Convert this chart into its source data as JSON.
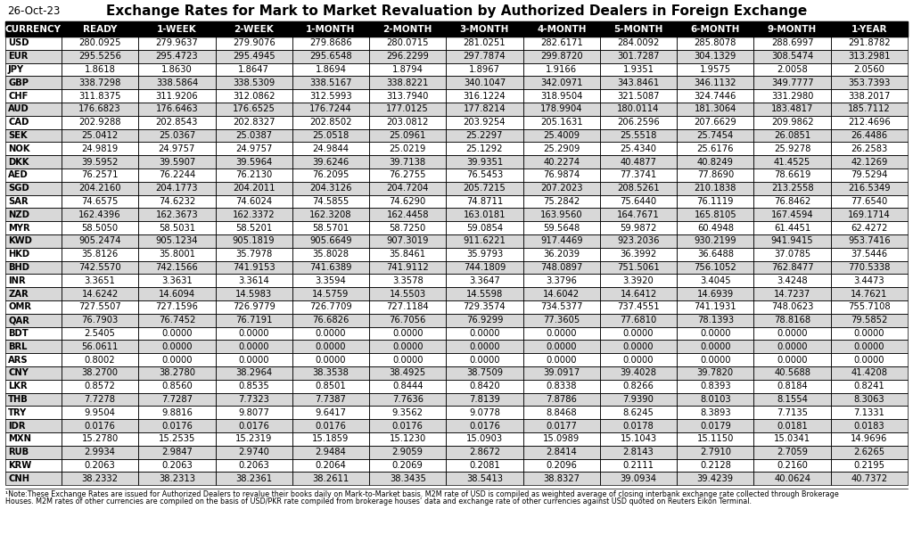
{
  "title": "Exchange Rates for Mark to Market Revaluation by Authorized Dealers in Foreign Exchange",
  "date": "26-Oct-23",
  "columns": [
    "CURRENCY",
    "READY",
    "1-WEEK",
    "2-WEEK",
    "1-MONTH",
    "2-MONTH",
    "3-MONTH",
    "4-MONTH",
    "5-MONTH",
    "6-MONTH",
    "9-MONTH",
    "1-YEAR"
  ],
  "rows": [
    [
      "USD",
      "280.0925",
      "279.9637",
      "279.9076",
      "279.8686",
      "280.0715",
      "281.0251",
      "282.6171",
      "284.0092",
      "285.8078",
      "288.6997",
      "291.8782"
    ],
    [
      "EUR",
      "295.5256",
      "295.4723",
      "295.4945",
      "295.6548",
      "296.2299",
      "297.7874",
      "299.8720",
      "301.7287",
      "304.1329",
      "308.5474",
      "313.2981"
    ],
    [
      "JPY",
      "1.8618",
      "1.8630",
      "1.8647",
      "1.8694",
      "1.8794",
      "1.8967",
      "1.9166",
      "1.9351",
      "1.9575",
      "2.0058",
      "2.0560"
    ],
    [
      "GBP",
      "338.7298",
      "338.5864",
      "338.5309",
      "338.5167",
      "338.8221",
      "340.1047",
      "342.0971",
      "343.8461",
      "346.1132",
      "349.7777",
      "353.7393"
    ],
    [
      "CHF",
      "311.8375",
      "311.9206",
      "312.0862",
      "312.5993",
      "313.7940",
      "316.1224",
      "318.9504",
      "321.5087",
      "324.7446",
      "331.2980",
      "338.2017"
    ],
    [
      "AUD",
      "176.6823",
      "176.6463",
      "176.6525",
      "176.7244",
      "177.0125",
      "177.8214",
      "178.9904",
      "180.0114",
      "181.3064",
      "183.4817",
      "185.7112"
    ],
    [
      "CAD",
      "202.9288",
      "202.8543",
      "202.8327",
      "202.8502",
      "203.0812",
      "203.9254",
      "205.1631",
      "206.2596",
      "207.6629",
      "209.9862",
      "212.4696"
    ],
    [
      "SEK",
      "25.0412",
      "25.0367",
      "25.0387",
      "25.0518",
      "25.0961",
      "25.2297",
      "25.4009",
      "25.5518",
      "25.7454",
      "26.0851",
      "26.4486"
    ],
    [
      "NOK",
      "24.9819",
      "24.9757",
      "24.9757",
      "24.9844",
      "25.0219",
      "25.1292",
      "25.2909",
      "25.4340",
      "25.6176",
      "25.9278",
      "26.2583"
    ],
    [
      "DKK",
      "39.5952",
      "39.5907",
      "39.5964",
      "39.6246",
      "39.7138",
      "39.9351",
      "40.2274",
      "40.4877",
      "40.8249",
      "41.4525",
      "42.1269"
    ],
    [
      "AED",
      "76.2571",
      "76.2244",
      "76.2130",
      "76.2095",
      "76.2755",
      "76.5453",
      "76.9874",
      "77.3741",
      "77.8690",
      "78.6619",
      "79.5294"
    ],
    [
      "SGD",
      "204.2160",
      "204.1773",
      "204.2011",
      "204.3126",
      "204.7204",
      "205.7215",
      "207.2023",
      "208.5261",
      "210.1838",
      "213.2558",
      "216.5349"
    ],
    [
      "SAR",
      "74.6575",
      "74.6232",
      "74.6024",
      "74.5855",
      "74.6290",
      "74.8711",
      "75.2842",
      "75.6440",
      "76.1119",
      "76.8462",
      "77.6540"
    ],
    [
      "NZD",
      "162.4396",
      "162.3673",
      "162.3372",
      "162.3208",
      "162.4458",
      "163.0181",
      "163.9560",
      "164.7671",
      "165.8105",
      "167.4594",
      "169.1714"
    ],
    [
      "MYR",
      "58.5050",
      "58.5031",
      "58.5201",
      "58.5701",
      "58.7250",
      "59.0854",
      "59.5648",
      "59.9872",
      "60.4948",
      "61.4451",
      "62.4272"
    ],
    [
      "KWD",
      "905.2474",
      "905.1234",
      "905.1819",
      "905.6649",
      "907.3019",
      "911.6221",
      "917.4469",
      "923.2036",
      "930.2199",
      "941.9415",
      "953.7416"
    ],
    [
      "HKD",
      "35.8126",
      "35.8001",
      "35.7978",
      "35.8028",
      "35.8461",
      "35.9793",
      "36.2039",
      "36.3992",
      "36.6488",
      "37.0785",
      "37.5446"
    ],
    [
      "BHD",
      "742.5570",
      "742.1566",
      "741.9153",
      "741.6389",
      "741.9112",
      "744.1809",
      "748.0897",
      "751.5061",
      "756.1052",
      "762.8477",
      "770.5338"
    ],
    [
      "INR",
      "3.3651",
      "3.3631",
      "3.3614",
      "3.3594",
      "3.3578",
      "3.3647",
      "3.3796",
      "3.3920",
      "3.4045",
      "3.4248",
      "3.4473"
    ],
    [
      "ZAR",
      "14.6242",
      "14.6094",
      "14.5983",
      "14.5759",
      "14.5503",
      "14.5598",
      "14.6042",
      "14.6412",
      "14.6939",
      "14.7237",
      "14.7621"
    ],
    [
      "OMR",
      "727.5507",
      "727.1596",
      "726.9779",
      "726.7709",
      "727.1184",
      "729.3574",
      "734.5377",
      "737.4551",
      "741.1931",
      "748.0623",
      "755.7108"
    ],
    [
      "QAR",
      "76.7903",
      "76.7452",
      "76.7191",
      "76.6826",
      "76.7056",
      "76.9299",
      "77.3605",
      "77.6810",
      "78.1393",
      "78.8168",
      "79.5852"
    ],
    [
      "BDT",
      "2.5405",
      "0.0000",
      "0.0000",
      "0.0000",
      "0.0000",
      "0.0000",
      "0.0000",
      "0.0000",
      "0.0000",
      "0.0000",
      "0.0000"
    ],
    [
      "BRL",
      "56.0611",
      "0.0000",
      "0.0000",
      "0.0000",
      "0.0000",
      "0.0000",
      "0.0000",
      "0.0000",
      "0.0000",
      "0.0000",
      "0.0000"
    ],
    [
      "ARS",
      "0.8002",
      "0.0000",
      "0.0000",
      "0.0000",
      "0.0000",
      "0.0000",
      "0.0000",
      "0.0000",
      "0.0000",
      "0.0000",
      "0.0000"
    ],
    [
      "CNY",
      "38.2700",
      "38.2780",
      "38.2964",
      "38.3538",
      "38.4925",
      "38.7509",
      "39.0917",
      "39.4028",
      "39.7820",
      "40.5688",
      "41.4208"
    ],
    [
      "LKR",
      "0.8572",
      "0.8560",
      "0.8535",
      "0.8501",
      "0.8444",
      "0.8420",
      "0.8338",
      "0.8266",
      "0.8393",
      "0.8184",
      "0.8241"
    ],
    [
      "THB",
      "7.7278",
      "7.7287",
      "7.7323",
      "7.7387",
      "7.7636",
      "7.8139",
      "7.8786",
      "7.9390",
      "8.0103",
      "8.1554",
      "8.3063"
    ],
    [
      "TRY",
      "9.9504",
      "9.8816",
      "9.8077",
      "9.6417",
      "9.3562",
      "9.0778",
      "8.8468",
      "8.6245",
      "8.3893",
      "7.7135",
      "7.1331"
    ],
    [
      "IDR",
      "0.0176",
      "0.0176",
      "0.0176",
      "0.0176",
      "0.0176",
      "0.0176",
      "0.0177",
      "0.0178",
      "0.0179",
      "0.0181",
      "0.0183"
    ],
    [
      "MXN",
      "15.2780",
      "15.2535",
      "15.2319",
      "15.1859",
      "15.1230",
      "15.0903",
      "15.0989",
      "15.1043",
      "15.1150",
      "15.0341",
      "14.9696"
    ],
    [
      "RUB",
      "2.9934",
      "2.9847",
      "2.9740",
      "2.9484",
      "2.9059",
      "2.8672",
      "2.8414",
      "2.8143",
      "2.7910",
      "2.7059",
      "2.6265"
    ],
    [
      "KRW",
      "0.2063",
      "0.2063",
      "0.2063",
      "0.2064",
      "0.2069",
      "0.2081",
      "0.2096",
      "0.2111",
      "0.2128",
      "0.2160",
      "0.2195"
    ],
    [
      "CNH",
      "38.2332",
      "38.2313",
      "38.2361",
      "38.2611",
      "38.3435",
      "38.5413",
      "38.8327",
      "39.0934",
      "39.4239",
      "40.0624",
      "40.7372"
    ]
  ],
  "footnote_line1": "¹Note:These Exchange Rates are issued for Authorized Dealers to revalue their books daily on Mark-to-Market basis. M2M rate of USD is compiled as weighted average of closing interbank exchange rate collected through Brokerage",
  "footnote_line2": "Houses. M2M rates of other currencies are compiled on the basis of USD/PKR rate compiled from brokerage houses’ data and exchange rate of other currencies against USD quoted on Reuters Eikon Terminal.",
  "header_bg": "#000000",
  "header_fg": "#ffffff",
  "row_bg_even": "#ffffff",
  "row_bg_odd": "#d8d8d8",
  "border_color": "#000000",
  "cell_text_color": "#000000",
  "title_fontsize": 11,
  "date_fontsize": 8.5,
  "header_fontsize": 7.5,
  "cell_fontsize": 7.2,
  "footnote_fontsize": 5.8
}
